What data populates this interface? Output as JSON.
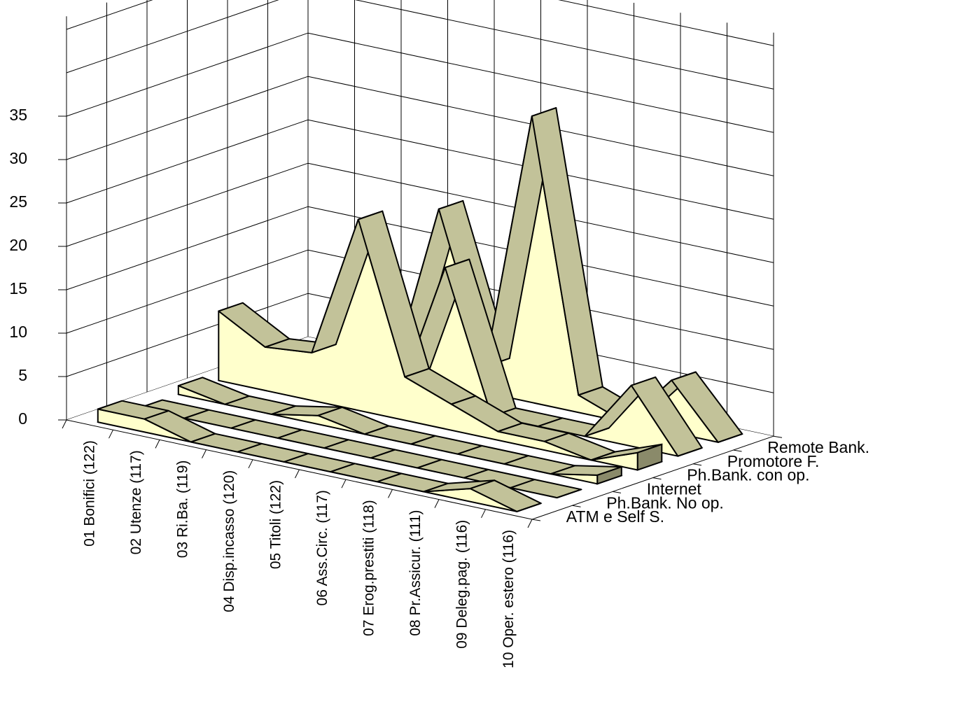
{
  "chart_data": {
    "type": "area",
    "style": "3d-ribbon",
    "categories": [
      "01 Bonifici (122)",
      "02 Utenze (117)",
      "03 Ri.Ba. (119)",
      "04 Disp.incasso (120)",
      "05 Titoli (122)",
      "06 Ass.Circ. (117)",
      "07 Erog.prestiti (118)",
      "08 Pr.Assicur. (111)",
      "09 Deleg.pag. (116)",
      "10 Oper. estero (116)"
    ],
    "series": [
      {
        "name": "ATM e Self S.",
        "values": [
          1.5,
          1.5,
          0,
          0,
          0,
          0,
          0,
          0,
          1.5,
          0
        ]
      },
      {
        "name": "Ph.Bank. No op.",
        "values": [
          0,
          0,
          0,
          0,
          0,
          0,
          0,
          0,
          0,
          0
        ]
      },
      {
        "name": "Internet",
        "values": [
          1,
          0,
          0,
          1,
          0,
          0,
          0,
          0,
          0,
          1
        ]
      },
      {
        "name": "Ph.Bank. con op.",
        "values": [
          8,
          5,
          5.5,
          22,
          5,
          3,
          1,
          1,
          0,
          2
        ]
      },
      {
        "name": "Promotore F.",
        "values": [
          0,
          0,
          0,
          0,
          16,
          0,
          0,
          0,
          7,
          0
        ]
      },
      {
        "name": "Remote Bank.",
        "values": [
          0,
          2,
          0,
          20,
          3,
          33,
          2,
          0,
          6,
          0
        ]
      }
    ],
    "ylim": [
      0,
      35
    ],
    "yticks": [
      "0",
      "5",
      "10",
      "15",
      "20",
      "25",
      "30",
      "35"
    ],
    "grid": true,
    "colors": {
      "top": "#c2c299",
      "front": "#ffffcc",
      "side": "#8a8a6a",
      "floor": "#a6a6a6",
      "grid": "#000000"
    }
  }
}
